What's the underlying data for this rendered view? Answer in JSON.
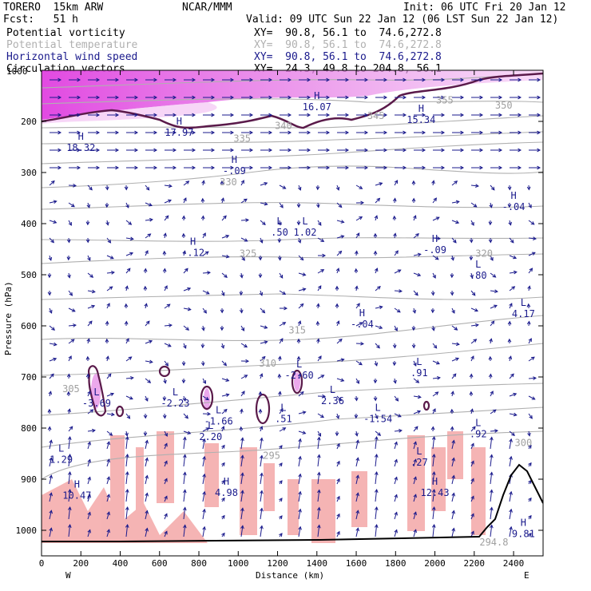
{
  "header": {
    "model": "TORERO  15km ARW",
    "org": "NCAR/MMM",
    "init": "Init: 06 UTC Fri 20 Jan 12",
    "fcst": "Fcst:   51 h",
    "valid": "Valid: 09 UTC Sun 22 Jan 12 (06 LST Sun 22 Jan 12)"
  },
  "fields": [
    {
      "name": "Potential vorticity",
      "xy": "XY=  90.8, 56.1 to  74.6,272.8",
      "color": "#000000"
    },
    {
      "name": "Potential temperature",
      "xy": "XY=  90.8, 56.1 to  74.6,272.8",
      "color": "#b0b0b0"
    },
    {
      "name": "Horizontal wind speed",
      "xy": "XY=  90.8, 56.1 to  74.6,272.8",
      "color": "#1a1a8c"
    },
    {
      "name": "Circulation vectors",
      "xy": "XY=  24.3, 49.8 to 204.8, 56.1",
      "color": "#000000"
    }
  ],
  "chart_data": {
    "type": "cross-section",
    "xlabel": "Distance (km)",
    "ylabel": "Pressure (hPa)",
    "xlim": [
      0,
      2550
    ],
    "ylim": [
      1050,
      100
    ],
    "x_ticks": [
      0,
      200,
      400,
      600,
      800,
      1000,
      1200,
      1400,
      1600,
      1800,
      2000,
      2200,
      2400
    ],
    "y_ticks": [
      200,
      300,
      400,
      500,
      600,
      700,
      800,
      900,
      1000
    ],
    "y_tick_labels": [
      "200",
      "300",
      "400",
      "500",
      "600",
      "700",
      "800",
      "900",
      "1000"
    ],
    "top_label": "1000",
    "left_end": "W",
    "right_end": "E",
    "theta_contours": [
      {
        "label": "355",
        "x": 2050,
        "p": 165
      },
      {
        "label": "350",
        "x": 2350,
        "p": 175
      },
      {
        "label": "345",
        "x": 1700,
        "p": 195
      },
      {
        "label": "340",
        "x": 1230,
        "p": 215
      },
      {
        "label": "335",
        "x": 1020,
        "p": 240
      },
      {
        "label": "330",
        "x": 950,
        "p": 325
      },
      {
        "label": "325",
        "x": 1050,
        "p": 465
      },
      {
        "label": "320",
        "x": 2250,
        "p": 465
      },
      {
        "label": "315",
        "x": 1300,
        "p": 615
      },
      {
        "label": "310",
        "x": 1150,
        "p": 680
      },
      {
        "label": "305",
        "x": 150,
        "p": 730
      },
      {
        "label": "300",
        "x": 2450,
        "p": 835
      },
      {
        "label": "295",
        "x": 1170,
        "p": 860
      },
      {
        "label": "294.8",
        "x": 2300,
        "p": 1030
      }
    ],
    "extrema": [
      {
        "type": "H",
        "value": "16.07",
        "x": 1400,
        "p": 175
      },
      {
        "type": "H",
        "value": "15.34",
        "x": 1930,
        "p": 200
      },
      {
        "type": "H",
        "value": "17.97",
        "x": 700,
        "p": 225
      },
      {
        "type": "H",
        "value": "18.32",
        "x": 200,
        "p": 255
      },
      {
        "type": "H",
        "value": "-.09",
        "x": 980,
        "p": 300
      },
      {
        "type": "H",
        "value": "-.04",
        "x": 2400,
        "p": 370
      },
      {
        "type": "L",
        "value": ".50",
        "x": 1210,
        "p": 420
      },
      {
        "type": "L",
        "value": "1.02",
        "x": 1340,
        "p": 420
      },
      {
        "type": "H",
        "value": "-.12",
        "x": 770,
        "p": 460
      },
      {
        "type": "H",
        "value": "-.09",
        "x": 2000,
        "p": 455
      },
      {
        "type": "L",
        "value": ".80",
        "x": 2220,
        "p": 505
      },
      {
        "type": "H",
        "value": "-.04",
        "x": 1630,
        "p": 600
      },
      {
        "type": "L",
        "value": "4.17",
        "x": 2450,
        "p": 580
      },
      {
        "type": "L",
        "value": "-2.60",
        "x": 1310,
        "p": 700
      },
      {
        "type": "L",
        "value": ".91",
        "x": 1920,
        "p": 695
      },
      {
        "type": "L",
        "value": "-3.69",
        "x": 280,
        "p": 755
      },
      {
        "type": "L",
        "value": "-2.23",
        "x": 680,
        "p": 755
      },
      {
        "type": "L",
        "value": "2.36",
        "x": 1480,
        "p": 750
      },
      {
        "type": "L",
        "value": "-1.66",
        "x": 900,
        "p": 790
      },
      {
        "type": "L",
        "value": ".51",
        "x": 1230,
        "p": 785
      },
      {
        "type": "L",
        "value": "-1.54",
        "x": 1710,
        "p": 785
      },
      {
        "type": "L",
        "value": "2.20",
        "x": 860,
        "p": 820
      },
      {
        "type": "L",
        "value": ".92",
        "x": 2220,
        "p": 815
      },
      {
        "type": "L",
        "value": "1.29",
        "x": 100,
        "p": 865
      },
      {
        "type": "L",
        "value": ".27",
        "x": 1920,
        "p": 870
      },
      {
        "type": "H",
        "value": "10.47",
        "x": 180,
        "p": 935
      },
      {
        "type": "H",
        "value": "4.98",
        "x": 940,
        "p": 930
      },
      {
        "type": "H",
        "value": "12.43",
        "x": 2000,
        "p": 930
      },
      {
        "type": "H",
        "value": "9.81",
        "x": 2450,
        "p": 1010
      }
    ]
  }
}
